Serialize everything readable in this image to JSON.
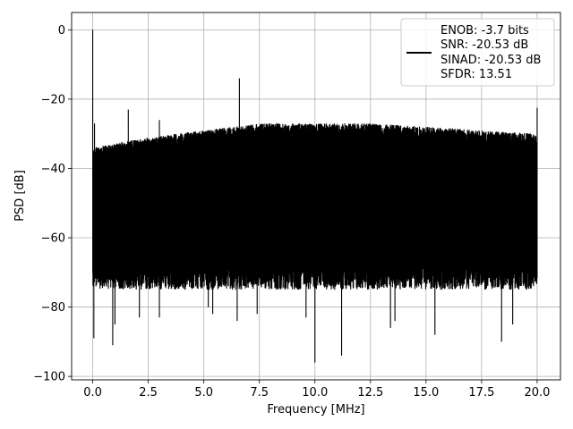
{
  "chart_data": {
    "type": "line",
    "title": "",
    "xlabel": "Frequency [MHz]",
    "ylabel": "PSD [dB]",
    "xlim": [
      -0.95,
      21.05
    ],
    "ylim": [
      -101,
      5
    ],
    "xticks": [
      0.0,
      2.5,
      5.0,
      7.5,
      10.0,
      12.5,
      15.0,
      17.5,
      20.0
    ],
    "xtick_labels": [
      "0.0",
      "2.5",
      "5.0",
      "7.5",
      "10.0",
      "12.5",
      "15.0",
      "17.5",
      "20.0"
    ],
    "yticks": [
      0,
      -20,
      -40,
      -60,
      -80,
      -100
    ],
    "ytick_labels": [
      "0",
      "−20",
      "−40",
      "−60",
      "−80",
      "−100"
    ],
    "grid": true,
    "legend_position": "top-right",
    "legend_entries": [
      "ENOB: -3.7 bits",
      "SNR: -20.53 dB",
      "SINAD: -20.53 dB",
      "SFDR: 13.51"
    ],
    "series_color": "#000000",
    "x_range": [
      0,
      20
    ],
    "noise_ceiling": [
      [
        0.0,
        -34
      ],
      [
        2.5,
        -31
      ],
      [
        5.0,
        -29
      ],
      [
        7.5,
        -27
      ],
      [
        10.0,
        -27
      ],
      [
        12.5,
        -27
      ],
      [
        15.0,
        -28
      ],
      [
        17.5,
        -29
      ],
      [
        20.0,
        -30
      ]
    ],
    "noise_floor_typical": -68,
    "noise_body_band": [
      -60,
      -37
    ],
    "spurs": [
      {
        "x": 0.0,
        "y": 0
      },
      {
        "x": 0.08,
        "y": -27
      },
      {
        "x": 1.6,
        "y": -23
      },
      {
        "x": 3.0,
        "y": -26
      },
      {
        "x": 6.6,
        "y": -14
      },
      {
        "x": 20.0,
        "y": -22.5
      }
    ],
    "dips": [
      {
        "x": 0.05,
        "y": -89
      },
      {
        "x": 0.9,
        "y": -91
      },
      {
        "x": 1.0,
        "y": -85
      },
      {
        "x": 2.1,
        "y": -83
      },
      {
        "x": 3.0,
        "y": -83
      },
      {
        "x": 5.2,
        "y": -80
      },
      {
        "x": 5.4,
        "y": -82
      },
      {
        "x": 6.5,
        "y": -84
      },
      {
        "x": 7.4,
        "y": -82
      },
      {
        "x": 9.6,
        "y": -83
      },
      {
        "x": 10.0,
        "y": -96
      },
      {
        "x": 11.2,
        "y": -94
      },
      {
        "x": 13.4,
        "y": -86
      },
      {
        "x": 13.6,
        "y": -84
      },
      {
        "x": 15.4,
        "y": -88
      },
      {
        "x": 18.4,
        "y": -90
      },
      {
        "x": 18.9,
        "y": -85
      }
    ]
  }
}
